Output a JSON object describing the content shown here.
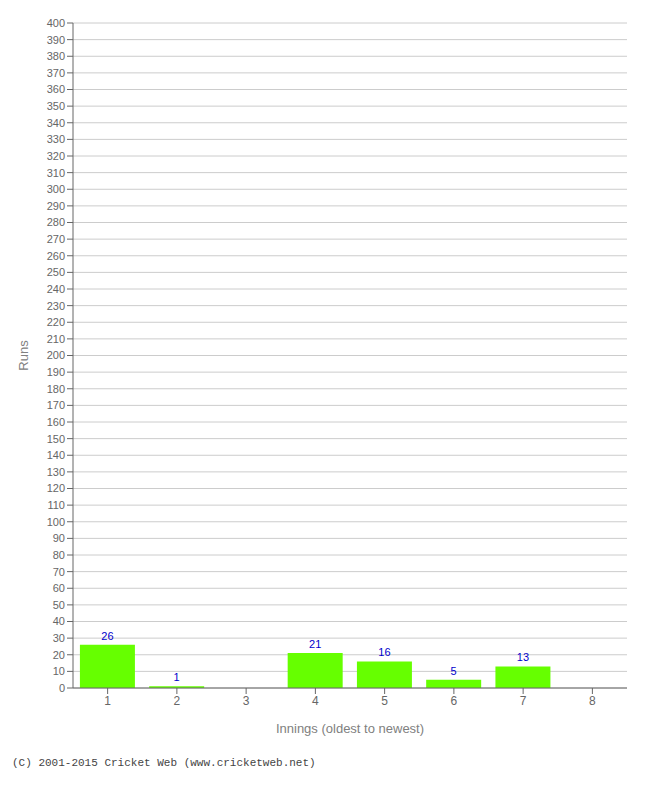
{
  "chart_data": {
    "type": "bar",
    "categories": [
      "1",
      "2",
      "3",
      "4",
      "5",
      "6",
      "7",
      "8"
    ],
    "values": [
      26,
      1,
      0,
      21,
      16,
      5,
      13,
      0
    ],
    "color": "#66ff00",
    "xlabel": "Innings (oldest to newest)",
    "ylabel": "Runs",
    "ylim": [
      0,
      400
    ],
    "yticks": [
      0,
      10,
      20,
      30,
      40,
      50,
      60,
      70,
      80,
      90,
      100,
      110,
      120,
      130,
      140,
      150,
      160,
      170,
      180,
      190,
      200,
      210,
      220,
      230,
      240,
      250,
      260,
      270,
      280,
      290,
      300,
      310,
      320,
      330,
      340,
      350,
      360,
      370,
      380,
      390,
      400
    ],
    "grid": true,
    "data_labels": true,
    "annotations": [
      "(C) 2001-2015 Cricket Web (www.cricketweb.net)"
    ]
  }
}
